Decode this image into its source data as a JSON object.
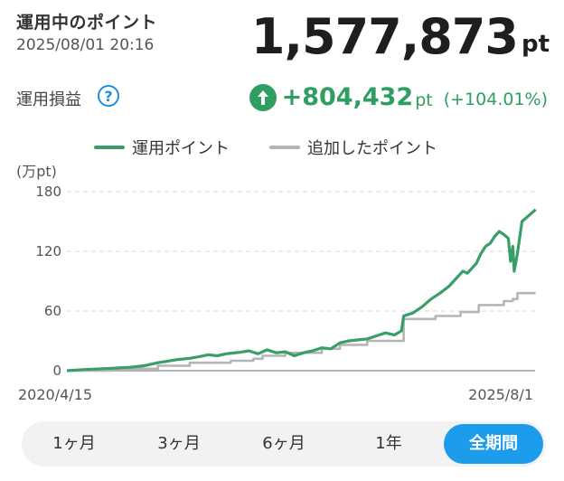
{
  "header": {
    "title": "運用中のポイント",
    "timestamp": "2025/08/01 20:16",
    "total_value": "1,577,873",
    "total_unit": "pt",
    "profit_label": "運用損益",
    "help_glyph": "?",
    "profit_value": "+804,432",
    "profit_unit": "pt",
    "profit_percent": "(+104.01%)"
  },
  "legend": {
    "invest_label": "運用ポイント",
    "added_label": "追加したポイント"
  },
  "colors": {
    "invest": "#3a9e68",
    "added": "#b5b5b5",
    "accent": "#1c9ceb",
    "profit": "#2e9e63"
  },
  "chart_data": {
    "type": "line",
    "ylabel": "(万pt)",
    "yticks": [
      "180",
      "120",
      "60",
      "0"
    ],
    "ylim": [
      0,
      180
    ],
    "xlim": [
      0,
      1
    ],
    "x_labels": [
      "2020/4/15",
      "2025/8/1"
    ],
    "series": [
      {
        "name": "運用ポイント",
        "points": [
          [
            0.0,
            0
          ],
          [
            0.04,
            1.2
          ],
          [
            0.1,
            2.5
          ],
          [
            0.14,
            3.5
          ],
          [
            0.17,
            5
          ],
          [
            0.2,
            8
          ],
          [
            0.24,
            11
          ],
          [
            0.27,
            12.5
          ],
          [
            0.29,
            14
          ],
          [
            0.31,
            16
          ],
          [
            0.33,
            15
          ],
          [
            0.35,
            17
          ],
          [
            0.38,
            18.5
          ],
          [
            0.4,
            20
          ],
          [
            0.42,
            17
          ],
          [
            0.44,
            21
          ],
          [
            0.46,
            18
          ],
          [
            0.48,
            19
          ],
          [
            0.5,
            15
          ],
          [
            0.52,
            18
          ],
          [
            0.54,
            20
          ],
          [
            0.56,
            23
          ],
          [
            0.58,
            22
          ],
          [
            0.6,
            28
          ],
          [
            0.62,
            30
          ],
          [
            0.64,
            31
          ],
          [
            0.66,
            32
          ],
          [
            0.68,
            35
          ],
          [
            0.7,
            38
          ],
          [
            0.72,
            36
          ],
          [
            0.735,
            40
          ],
          [
            0.74,
            55
          ],
          [
            0.76,
            58
          ],
          [
            0.78,
            64
          ],
          [
            0.8,
            72
          ],
          [
            0.82,
            78
          ],
          [
            0.84,
            85
          ],
          [
            0.86,
            95
          ],
          [
            0.87,
            100
          ],
          [
            0.88,
            98
          ],
          [
            0.9,
            108
          ],
          [
            0.91,
            118
          ],
          [
            0.92,
            125
          ],
          [
            0.93,
            128
          ],
          [
            0.94,
            135
          ],
          [
            0.95,
            140
          ],
          [
            0.96,
            137
          ],
          [
            0.97,
            133
          ],
          [
            0.975,
            110
          ],
          [
            0.98,
            125
          ],
          [
            0.983,
            100
          ],
          [
            0.99,
            118
          ],
          [
            1.0,
            150
          ],
          [
            1.02,
            158
          ],
          [
            1.03,
            162
          ]
        ]
      },
      {
        "name": "追加したポイント",
        "points": [
          [
            0.0,
            0
          ],
          [
            0.1,
            2
          ],
          [
            0.2,
            5
          ],
          [
            0.27,
            8
          ],
          [
            0.36,
            10
          ],
          [
            0.41,
            12
          ],
          [
            0.43,
            15
          ],
          [
            0.48,
            18
          ],
          [
            0.5,
            18
          ],
          [
            0.56,
            22
          ],
          [
            0.6,
            26
          ],
          [
            0.66,
            30
          ],
          [
            0.735,
            30
          ],
          [
            0.74,
            52
          ],
          [
            0.8,
            52
          ],
          [
            0.81,
            55
          ],
          [
            0.86,
            55
          ],
          [
            0.865,
            59
          ],
          [
            0.9,
            59
          ],
          [
            0.905,
            66
          ],
          [
            0.95,
            66
          ],
          [
            0.96,
            70
          ],
          [
            0.98,
            72
          ],
          [
            0.99,
            78
          ],
          [
            1.03,
            78
          ]
        ]
      }
    ]
  },
  "periods": [
    "1ヶ月",
    "3ヶ月",
    "6ヶ月",
    "1年",
    "全期間"
  ],
  "active_period_index": 4
}
